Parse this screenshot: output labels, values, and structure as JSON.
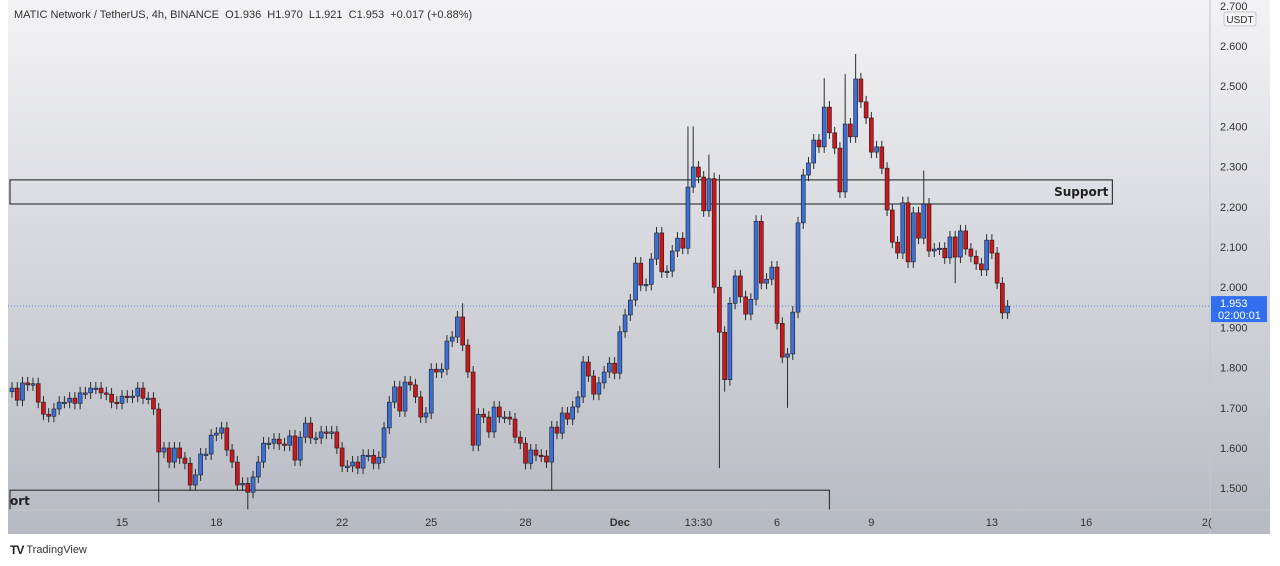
{
  "header": {
    "symbol": "MATIC Network / TetherUS, 4h, BINANCE",
    "ohlc": "O1.936  H1.970  L1.921  C1.953  +0.017 (+0.88%)"
  },
  "footer": {
    "brand": "TradingView",
    "logo_mark": "17"
  },
  "colors": {
    "up": "#3b6fd6",
    "down": "#c9181c",
    "wick": "#2a2a2a",
    "price_badge": "#2f6ff0",
    "zone_line": "#3a3a3a"
  },
  "chart_data": {
    "type": "candlestick",
    "title": "MATIC Network / TetherUS, 4h, BINANCE",
    "currency_label": "USDT",
    "ylim": [
      1.45,
      2.7
    ],
    "y_ticks": [
      "2.700",
      "2.600",
      "2.500",
      "2.400",
      "2.300",
      "2.200",
      "2.100",
      "2.000",
      "1.900",
      "1.800",
      "1.700",
      "1.600",
      "1.500"
    ],
    "x_ticks": [
      {
        "label": "15",
        "candle": 21
      },
      {
        "label": "18",
        "candle": 39
      },
      {
        "label": "22",
        "candle": 63
      },
      {
        "label": "25",
        "candle": 80
      },
      {
        "label": "28",
        "candle": 98
      },
      {
        "label": "Dec",
        "candle": 116
      },
      {
        "label": "13:30",
        "candle": 131
      },
      {
        "label": "6",
        "candle": 146
      },
      {
        "label": "9",
        "candle": 164
      },
      {
        "label": "13",
        "candle": 187
      },
      {
        "label": "16",
        "candle": 205
      },
      {
        "label": "2(",
        "candle": 228
      }
    ],
    "first_open": 1.74,
    "closes": [
      1.749,
      1.719,
      1.762,
      1.757,
      1.76,
      1.714,
      1.684,
      1.679,
      1.697,
      1.714,
      1.714,
      1.724,
      1.711,
      1.737,
      1.737,
      1.749,
      1.749,
      1.737,
      1.734,
      1.714,
      1.711,
      1.729,
      1.727,
      1.729,
      1.749,
      1.724,
      1.724,
      1.697,
      1.59,
      1.6,
      1.565,
      1.6,
      1.575,
      1.562,
      1.508,
      1.533,
      1.585,
      1.585,
      1.632,
      1.637,
      1.65,
      1.595,
      1.565,
      1.508,
      1.512,
      1.49,
      1.528,
      1.565,
      1.612,
      1.612,
      1.622,
      1.61,
      1.607,
      1.63,
      1.57,
      1.627,
      1.662,
      1.625,
      1.625,
      1.64,
      1.637,
      1.64,
      1.6,
      1.555,
      1.555,
      1.565,
      1.55,
      1.582,
      1.582,
      1.562,
      1.577,
      1.65,
      1.714,
      1.752,
      1.692,
      1.764,
      1.757,
      1.727,
      1.677,
      1.687,
      1.796,
      1.789,
      1.796,
      1.866,
      1.876,
      1.926,
      1.856,
      1.789,
      1.607,
      1.684,
      1.677,
      1.64,
      1.702,
      1.677,
      1.677,
      1.672,
      1.627,
      1.612,
      1.562,
      1.595,
      1.582,
      1.58,
      1.565,
      1.652,
      1.637,
      1.687,
      1.672,
      1.702,
      1.727,
      1.814,
      1.779,
      1.734,
      1.762,
      1.789,
      1.811,
      1.786,
      1.889,
      1.931,
      1.968,
      2.06,
      2.005,
      2.007,
      2.07,
      2.135,
      2.038,
      2.04,
      2.09,
      2.122,
      2.097,
      2.249,
      2.299,
      2.274,
      2.19,
      2.27,
      2.0,
      1.888,
      1.77,
      1.96,
      2.028,
      1.976,
      1.933,
      1.97,
      2.164,
      2.01,
      2.02,
      2.05,
      1.91,
      1.826,
      1.834,
      1.938,
      2.16,
      2.279,
      2.309,
      2.366,
      2.349,
      2.448,
      2.384,
      2.346,
      2.237,
      2.406,
      2.374,
      2.518,
      2.461,
      2.421,
      2.336,
      2.349,
      2.296,
      2.192,
      2.112,
      2.085,
      2.21,
      2.063,
      2.185,
      2.122,
      2.207,
      2.09,
      2.095,
      2.097,
      2.073,
      2.125,
      2.075,
      2.14,
      2.095,
      2.077,
      2.058,
      2.043,
      2.117,
      2.085,
      2.01,
      1.936,
      1.953
    ],
    "default_wick": 0.015,
    "wick_overrides": {
      "28": [
        null,
        1.465
      ],
      "45": [
        null,
        1.445
      ],
      "103": [
        null,
        1.495
      ],
      "135": [
        2.28,
        1.55
      ],
      "136": [
        null,
        1.74
      ],
      "148": [
        null,
        1.7
      ],
      "129": [
        2.4,
        null
      ],
      "130": [
        2.4,
        null
      ],
      "133": [
        2.33,
        null
      ],
      "155": [
        2.52,
        null
      ],
      "159": [
        2.53,
        null
      ],
      "161": [
        2.58,
        null
      ],
      "174": [
        2.29,
        null
      ],
      "180": [
        null,
        2.01
      ],
      "86": [
        1.96,
        null
      ]
    },
    "zones": [
      {
        "label": "Support",
        "top": 2.267,
        "bottom": 2.207,
        "end_candle": 210
      },
      {
        "label": "ort",
        "top": 1.495,
        "bottom": 1.4,
        "end_candle": 156
      }
    ],
    "current_price": "1.953",
    "countdown": "02:00:01"
  }
}
